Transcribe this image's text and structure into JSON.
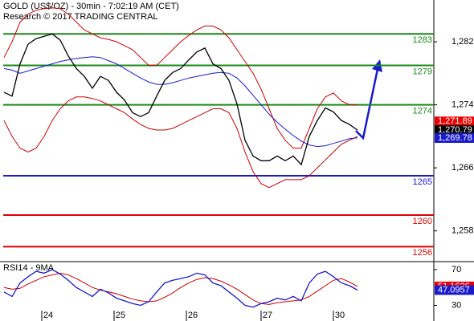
{
  "chart_data": [
    {
      "type": "line",
      "title": "GOLD (US$/OZ) - 30min - 7:02:19 AM (CET)",
      "subtitle": "Research © 2017 TRADING CENTRAL",
      "x": [
        0,
        1,
        2,
        3,
        4,
        5,
        6,
        7,
        8,
        9,
        10,
        11,
        12,
        13,
        14,
        15,
        16,
        17,
        18,
        19,
        20,
        21,
        22,
        23,
        24,
        25,
        26,
        27,
        28,
        29,
        30,
        31,
        32,
        33,
        34,
        35,
        36,
        37,
        38,
        39,
        40,
        41,
        42,
        43,
        44
      ],
      "xlim": [
        -0.5,
        53.5
      ],
      "ylim": [
        1254.2,
        1287.3
      ],
      "yticks": [
        {
          "value": 1282,
          "label": "1,282"
        },
        {
          "value": 1274,
          "label": "1,274"
        },
        {
          "value": 1266,
          "label": "1,266"
        },
        {
          "value": 1258,
          "label": "1,258"
        }
      ],
      "series": [
        {
          "color": "#cc0000",
          "values": [
            1280,
            1282,
            1284.5,
            1285.5,
            1286,
            1286.2,
            1286.3,
            1286.2,
            1285.5,
            1284.5,
            1283.5,
            1283,
            1282.5,
            1282.3,
            1282,
            1281.5,
            1281,
            1280,
            1279,
            1279,
            1280,
            1281,
            1282,
            1282.8,
            1283.5,
            1284,
            1284,
            1283.5,
            1282.5,
            1281,
            1279.5,
            1278,
            1276,
            1273.5,
            1271,
            1269.5,
            1268.5,
            1268.5,
            1271,
            1273.5,
            1275,
            1275.5,
            1274.5,
            1274,
            1274
          ]
        },
        {
          "color": "#cc0000",
          "values": [
            1272,
            1270,
            1268.5,
            1268,
            1268.5,
            1270,
            1272,
            1273.5,
            1274.5,
            1275,
            1275,
            1274.8,
            1274.5,
            1274,
            1273.5,
            1273,
            1272.2,
            1271.5,
            1271,
            1270.8,
            1270.8,
            1271,
            1271.5,
            1272,
            1272.5,
            1273,
            1273.5,
            1273.5,
            1273,
            1271,
            1268,
            1265.5,
            1264,
            1263.5,
            1264,
            1264.5,
            1264.5,
            1264.5,
            1265,
            1266,
            1267,
            1268,
            1269,
            1269.5,
            1270
          ]
        },
        {
          "color": "#1a1acc",
          "values": [
            1278.6,
            1278.4,
            1278.0,
            1278.3,
            1278.6,
            1278.9,
            1279.2,
            1279.5,
            1279.7,
            1279.9,
            1280.0,
            1280.1,
            1280.0,
            1279.6,
            1279.2,
            1278.6,
            1278.0,
            1277.4,
            1276.9,
            1276.6,
            1276.6,
            1276.8,
            1277.1,
            1277.4,
            1277.6,
            1277.8,
            1278.0,
            1278.1,
            1278.0,
            1277.4,
            1276.4,
            1275.2,
            1274.0,
            1272.8,
            1271.8,
            1270.9,
            1270.1,
            1269.4,
            1268.9,
            1268.7,
            1268.8,
            1269.1,
            1269.4,
            1269.7,
            1269.8
          ]
        },
        {
          "color": "#000000",
          "values": [
            1275.6,
            1275.1,
            1279.2,
            1281.7,
            1282.4,
            1282.7,
            1283.0,
            1282.2,
            1280.2,
            1278.6,
            1277.6,
            1276.1,
            1277.6,
            1277.1,
            1275.6,
            1274.6,
            1273.0,
            1272.5,
            1273.0,
            1275.1,
            1277.1,
            1278.1,
            1278.6,
            1279.7,
            1280.7,
            1281.2,
            1279.2,
            1278.6,
            1277.1,
            1274.1,
            1269.5,
            1267.5,
            1266.9,
            1266.9,
            1267.5,
            1266.9,
            1267.5,
            1266.4,
            1270.0,
            1272.0,
            1273.6,
            1273.1,
            1272.0,
            1271.5,
            1270.79
          ]
        }
      ],
      "levels": [
        {
          "value": 1283,
          "color": "#1a8a1a"
        },
        {
          "value": 1279,
          "color": "#1a8a1a"
        },
        {
          "value": 1274,
          "color": "#1a8a1a"
        },
        {
          "value": 1265,
          "color": "#1a1acc"
        },
        {
          "value": 1260,
          "color": "#dd0000"
        },
        {
          "value": 1256,
          "color": "#dd0000"
        }
      ],
      "markers": [
        {
          "value": 1271.89,
          "label": "1,271.89",
          "color": "#ee0000"
        },
        {
          "value": 1270.79,
          "label": "1,270.79",
          "color": "#000000"
        },
        {
          "value": 1269.78,
          "label": "1,269.78",
          "color": "#1a1acc"
        }
      ]
    },
    {
      "type": "line",
      "title": "RSI14 - 9MA",
      "x": [
        0,
        1,
        2,
        3,
        4,
        5,
        6,
        7,
        8,
        9,
        10,
        11,
        12,
        13,
        14,
        15,
        16,
        17,
        18,
        19,
        20,
        21,
        22,
        23,
        24,
        25,
        26,
        27,
        28,
        29,
        30,
        31,
        32,
        33,
        34,
        35,
        36,
        37,
        38,
        39,
        40,
        41,
        42,
        43,
        44
      ],
      "xlim": [
        -0.5,
        53.5
      ],
      "ylim": [
        17,
        78
      ],
      "yticks": [
        70,
        30
      ],
      "xticks": [
        {
          "value": 5.5,
          "label": "24"
        },
        {
          "value": 14.5,
          "label": "25"
        },
        {
          "value": 23.5,
          "label": "26"
        },
        {
          "value": 32.8,
          "label": "27"
        },
        {
          "value": 41.8,
          "label": "30"
        }
      ],
      "series": [
        {
          "color": "#cc0000",
          "values": [
            50,
            48,
            49,
            54,
            58,
            62,
            64,
            66,
            64,
            60,
            55,
            50,
            47,
            45,
            43,
            40,
            37,
            35,
            34,
            35,
            39,
            44,
            50,
            55,
            59,
            61,
            60,
            57,
            53,
            48,
            42,
            36,
            32,
            31,
            33,
            34,
            35,
            36,
            40,
            46,
            52,
            58,
            60,
            56,
            51.1626
          ]
        },
        {
          "color": "#1a1acc",
          "values": [
            45,
            40,
            55,
            62,
            68,
            66,
            70,
            65,
            58,
            50,
            45,
            40,
            48,
            44,
            38,
            35,
            32,
            30,
            34,
            45,
            55,
            58,
            60,
            62,
            66,
            64,
            55,
            52,
            45,
            38,
            30,
            28,
            32,
            34,
            38,
            36,
            40,
            35,
            55,
            65,
            68,
            62,
            55,
            52,
            47.0957
          ]
        }
      ],
      "markers": [
        {
          "value": 51.1626,
          "color": "#ee0000"
        },
        {
          "value": 47.0957,
          "color": "#1a1acc"
        }
      ]
    }
  ]
}
